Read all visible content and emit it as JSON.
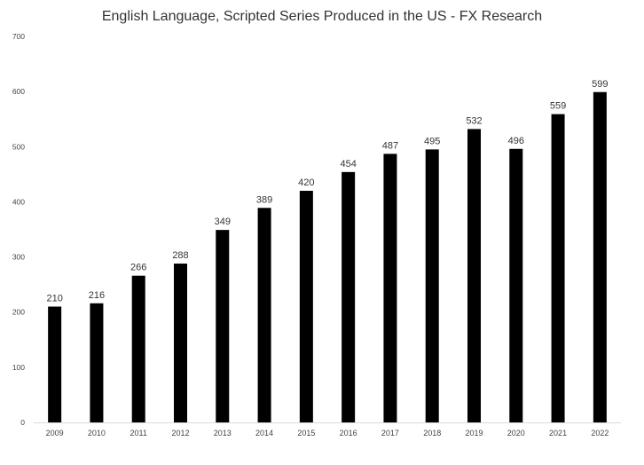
{
  "chart_data": {
    "type": "bar",
    "title": "English Language, Scripted Series Produced in the US - FX Research",
    "xlabel": "",
    "ylabel": "",
    "categories": [
      "2009",
      "2010",
      "2011",
      "2012",
      "2013",
      "2014",
      "2015",
      "2016",
      "2017",
      "2018",
      "2019",
      "2020",
      "2021",
      "2022"
    ],
    "values": [
      210,
      216,
      266,
      288,
      349,
      389,
      420,
      454,
      487,
      495,
      532,
      496,
      559,
      599
    ],
    "ylim": [
      0,
      700
    ],
    "yticks": [
      0,
      100,
      200,
      300,
      400,
      500,
      600,
      700
    ],
    "grid": false,
    "legend": "none",
    "bar_color": "#000000",
    "data_labels": true
  }
}
